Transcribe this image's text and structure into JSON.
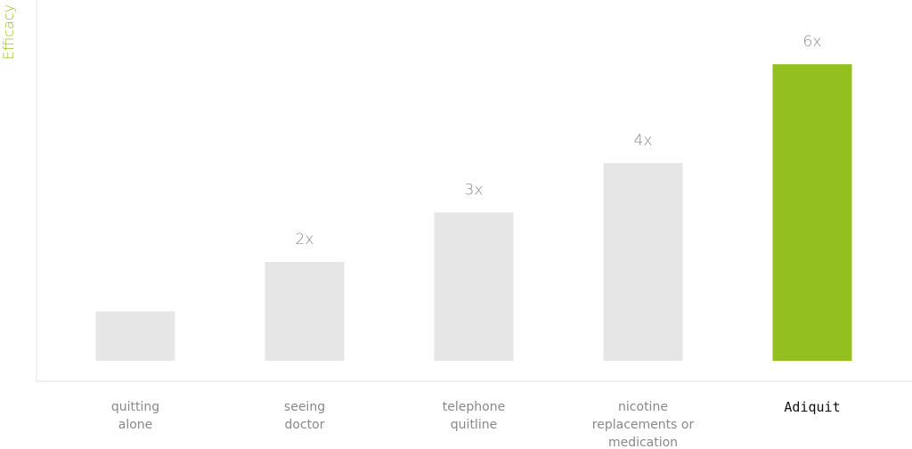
{
  "chart_data": {
    "type": "bar",
    "y_label": "Efficacy",
    "categories": [
      "quitting alone",
      "seeing doctor",
      "telephone quitline",
      "nicotine replacements or medication",
      "Adiquit"
    ],
    "values": [
      1,
      2,
      3,
      4,
      6
    ],
    "value_labels": [
      null,
      "2x",
      "3x",
      "4x",
      "6x"
    ],
    "colors": [
      "#e6e6e6",
      "#e6e6e6",
      "#e6e6e6",
      "#e6e6e6",
      "#93c01f"
    ],
    "ylim": [
      0,
      7.3
    ],
    "grid": false
  }
}
